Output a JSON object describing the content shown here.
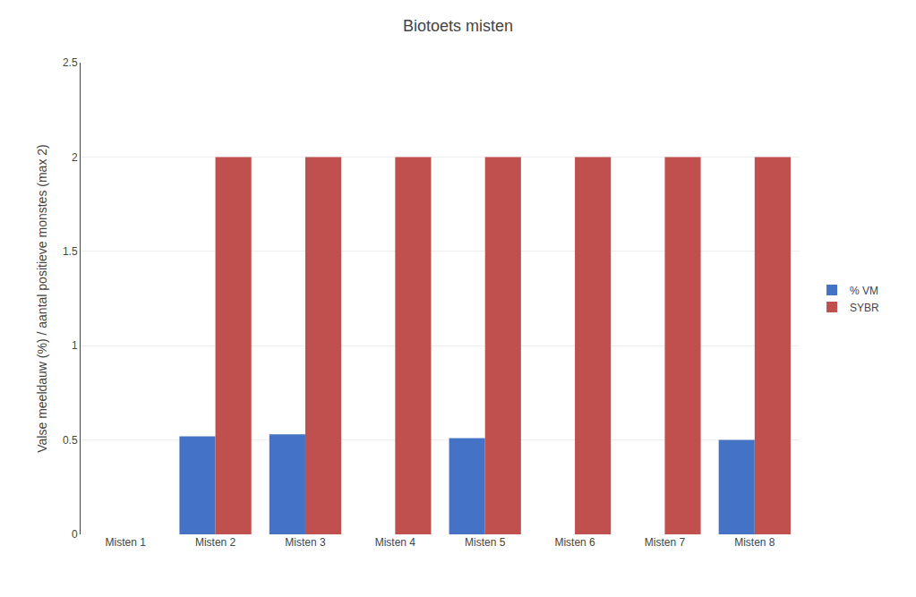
{
  "chart_data": {
    "type": "bar",
    "title": "Biotoets misten",
    "categories": [
      "Misten 1",
      "Misten 2",
      "Misten 3",
      "Misten 4",
      "Misten 5",
      "Misten 6",
      "Misten 7",
      "Misten 8"
    ],
    "series": [
      {
        "name": "% VM",
        "color": "#4472C4",
        "values": [
          0,
          0.52,
          0.53,
          0,
          0.51,
          0,
          0,
          0.5
        ]
      },
      {
        "name": "SYBR",
        "color": "#C0504D",
        "values": [
          0,
          2.0,
          2.0,
          2.0,
          2.0,
          2.0,
          2.0,
          2.0
        ]
      }
    ],
    "ylabel": "Valse meeldauw (%) / aantal positieve monstes (max 2)",
    "ylim": [
      0,
      2.5
    ],
    "yticks": [
      0,
      0.5,
      1,
      1.5,
      2,
      2.5
    ],
    "grid": true,
    "legend": "right"
  }
}
